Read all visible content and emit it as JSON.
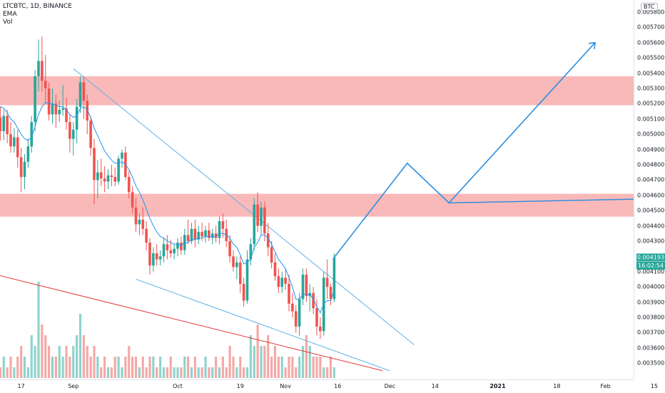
{
  "legend": {
    "symbol": "LTCBTC, 1D, BINANCE",
    "ema": "EMA",
    "vol": "Vol"
  },
  "currency_badge": "BTC",
  "current_price_label": "0.004193",
  "countdown_label": "16:02:54",
  "colors": {
    "up": "#26a69a",
    "down": "#ef5350",
    "ema": "#2196f3",
    "zone": "#f7a1a1",
    "channel": "#5eb1e8",
    "projection": "#2a8fe0",
    "red_trend": "#e53935"
  },
  "chart_data": {
    "type": "candlestick",
    "title": "",
    "ylim": [
      0.00345,
      0.0058
    ],
    "price_ticks": [
      "0.005800",
      "0.005700",
      "0.005600",
      "0.005500",
      "0.005400",
      "0.005300",
      "0.005200",
      "0.005100",
      "0.005000",
      "0.004900",
      "0.004800",
      "0.004700",
      "0.004600",
      "0.004500",
      "0.004400",
      "0.004300",
      "0.004100",
      "0.004000",
      "0.003900",
      "0.003800",
      "0.003700",
      "0.003600",
      "0.003500"
    ],
    "time_ticks": [
      "17",
      "Sep",
      "Oct",
      "19",
      "Nov",
      "16",
      "Dec",
      "14",
      "2021",
      "18",
      "Feb",
      "15"
    ],
    "current_price": 0.004193,
    "resistance_zones": [
      {
        "low": 0.00519,
        "high": 0.00538
      },
      {
        "low": 0.00446,
        "high": 0.00461
      }
    ],
    "candles": [
      {
        "t": "Aug-10",
        "o": 0.00521,
        "h": 0.00529,
        "l": 0.00504,
        "c": 0.00511
      },
      {
        "t": "Aug-11",
        "o": 0.00511,
        "h": 0.00518,
        "l": 0.00496,
        "c": 0.00502
      },
      {
        "t": "Aug-12",
        "o": 0.00502,
        "h": 0.00516,
        "l": 0.00496,
        "c": 0.00512
      },
      {
        "t": "Aug-13",
        "o": 0.00512,
        "h": 0.00516,
        "l": 0.00494,
        "c": 0.005
      },
      {
        "t": "Aug-14",
        "o": 0.005,
        "h": 0.00508,
        "l": 0.00488,
        "c": 0.00492
      },
      {
        "t": "Aug-15",
        "o": 0.00492,
        "h": 0.00504,
        "l": 0.00488,
        "c": 0.00498
      },
      {
        "t": "Aug-16",
        "o": 0.00498,
        "h": 0.00503,
        "l": 0.00478,
        "c": 0.00485
      },
      {
        "t": "Aug-17",
        "o": 0.00485,
        "h": 0.00491,
        "l": 0.00462,
        "c": 0.00472
      },
      {
        "t": "Aug-18",
        "o": 0.00472,
        "h": 0.00487,
        "l": 0.00464,
        "c": 0.00482
      },
      {
        "t": "Aug-19",
        "o": 0.00482,
        "h": 0.00497,
        "l": 0.00478,
        "c": 0.00492
      },
      {
        "t": "Aug-20",
        "o": 0.00492,
        "h": 0.00512,
        "l": 0.00488,
        "c": 0.00508
      },
      {
        "t": "Aug-21",
        "o": 0.00508,
        "h": 0.00542,
        "l": 0.00502,
        "c": 0.00538
      },
      {
        "t": "Aug-22",
        "o": 0.00538,
        "h": 0.00562,
        "l": 0.00528,
        "c": 0.00548
      },
      {
        "t": "Aug-23",
        "o": 0.00548,
        "h": 0.00564,
        "l": 0.00528,
        "c": 0.00535
      },
      {
        "t": "Aug-24",
        "o": 0.00535,
        "h": 0.00552,
        "l": 0.0052,
        "c": 0.0053
      },
      {
        "t": "Aug-25",
        "o": 0.0053,
        "h": 0.00534,
        "l": 0.00509,
        "c": 0.00513
      },
      {
        "t": "Aug-26",
        "o": 0.00513,
        "h": 0.0053,
        "l": 0.00507,
        "c": 0.0052
      },
      {
        "t": "Aug-27",
        "o": 0.0052,
        "h": 0.00526,
        "l": 0.00504,
        "c": 0.00513
      },
      {
        "t": "Aug-28",
        "o": 0.00513,
        "h": 0.00522,
        "l": 0.00508,
        "c": 0.00516
      },
      {
        "t": "Aug-29",
        "o": 0.00516,
        "h": 0.00532,
        "l": 0.00512,
        "c": 0.00517
      },
      {
        "t": "Aug-30",
        "o": 0.00517,
        "h": 0.00524,
        "l": 0.00503,
        "c": 0.00508
      },
      {
        "t": "Aug-31",
        "o": 0.00508,
        "h": 0.00513,
        "l": 0.00488,
        "c": 0.00497
      },
      {
        "t": "Sep-01",
        "o": 0.00497,
        "h": 0.00508,
        "l": 0.00486,
        "c": 0.00503
      },
      {
        "t": "Sep-02",
        "o": 0.00503,
        "h": 0.00523,
        "l": 0.00494,
        "c": 0.00518
      },
      {
        "t": "Sep-03",
        "o": 0.00518,
        "h": 0.00538,
        "l": 0.00514,
        "c": 0.00534
      },
      {
        "t": "Sep-04",
        "o": 0.00534,
        "h": 0.00538,
        "l": 0.0051,
        "c": 0.00522
      },
      {
        "t": "Sep-05",
        "o": 0.00522,
        "h": 0.00526,
        "l": 0.005,
        "c": 0.00509
      },
      {
        "t": "Sep-06",
        "o": 0.00509,
        "h": 0.00512,
        "l": 0.00486,
        "c": 0.00491
      },
      {
        "t": "Sep-07",
        "o": 0.00491,
        "h": 0.00497,
        "l": 0.00454,
        "c": 0.0047
      },
      {
        "t": "Sep-08",
        "o": 0.0047,
        "h": 0.00483,
        "l": 0.00458,
        "c": 0.00475
      },
      {
        "t": "Sep-09",
        "o": 0.00475,
        "h": 0.00484,
        "l": 0.00466,
        "c": 0.00471
      },
      {
        "t": "Sep-10",
        "o": 0.00471,
        "h": 0.00479,
        "l": 0.00462,
        "c": 0.00469
      },
      {
        "t": "Sep-11",
        "o": 0.00469,
        "h": 0.00477,
        "l": 0.00464,
        "c": 0.00473
      },
      {
        "t": "Sep-12",
        "o": 0.00473,
        "h": 0.0048,
        "l": 0.00466,
        "c": 0.00472
      },
      {
        "t": "Sep-13",
        "o": 0.00472,
        "h": 0.00478,
        "l": 0.00466,
        "c": 0.00469
      },
      {
        "t": "Sep-14",
        "o": 0.00469,
        "h": 0.00486,
        "l": 0.00467,
        "c": 0.00484
      },
      {
        "t": "Sep-15",
        "o": 0.00484,
        "h": 0.0049,
        "l": 0.00478,
        "c": 0.00488
      },
      {
        "t": "Sep-16",
        "o": 0.00488,
        "h": 0.00492,
        "l": 0.0047,
        "c": 0.00472
      },
      {
        "t": "Sep-17",
        "o": 0.00472,
        "h": 0.00476,
        "l": 0.00458,
        "c": 0.00462
      },
      {
        "t": "Sep-18",
        "o": 0.00462,
        "h": 0.00466,
        "l": 0.00448,
        "c": 0.00452
      },
      {
        "t": "Sep-19",
        "o": 0.00452,
        "h": 0.00458,
        "l": 0.00436,
        "c": 0.00441
      },
      {
        "t": "Sep-20",
        "o": 0.00441,
        "h": 0.00448,
        "l": 0.00434,
        "c": 0.00444
      },
      {
        "t": "Sep-21",
        "o": 0.00444,
        "h": 0.00452,
        "l": 0.00434,
        "c": 0.00438
      },
      {
        "t": "Sep-22",
        "o": 0.00438,
        "h": 0.00443,
        "l": 0.00424,
        "c": 0.00429
      },
      {
        "t": "Sep-23",
        "o": 0.00429,
        "h": 0.00432,
        "l": 0.00408,
        "c": 0.00414
      },
      {
        "t": "Sep-24",
        "o": 0.00414,
        "h": 0.00426,
        "l": 0.0041,
        "c": 0.00422
      },
      {
        "t": "Sep-25",
        "o": 0.00422,
        "h": 0.00428,
        "l": 0.00414,
        "c": 0.00418
      },
      {
        "t": "Sep-26",
        "o": 0.00418,
        "h": 0.00424,
        "l": 0.00414,
        "c": 0.0042
      },
      {
        "t": "Sep-27",
        "o": 0.0042,
        "h": 0.00432,
        "l": 0.00416,
        "c": 0.00428
      },
      {
        "t": "Sep-28",
        "o": 0.00428,
        "h": 0.00434,
        "l": 0.00418,
        "c": 0.00424
      },
      {
        "t": "Sep-29",
        "o": 0.00424,
        "h": 0.00431,
        "l": 0.00419,
        "c": 0.00422
      },
      {
        "t": "Sep-30",
        "o": 0.00422,
        "h": 0.00428,
        "l": 0.00418,
        "c": 0.00425
      },
      {
        "t": "Oct-01",
        "o": 0.00425,
        "h": 0.00432,
        "l": 0.0042,
        "c": 0.00429
      },
      {
        "t": "Oct-02",
        "o": 0.00429,
        "h": 0.00433,
        "l": 0.00421,
        "c": 0.00424
      },
      {
        "t": "Oct-03",
        "o": 0.00424,
        "h": 0.00438,
        "l": 0.00421,
        "c": 0.00434
      },
      {
        "t": "Oct-04",
        "o": 0.00434,
        "h": 0.00444,
        "l": 0.00428,
        "c": 0.0043
      },
      {
        "t": "Oct-05",
        "o": 0.0043,
        "h": 0.00442,
        "l": 0.00428,
        "c": 0.00438
      },
      {
        "t": "Oct-06",
        "o": 0.00438,
        "h": 0.00444,
        "l": 0.00426,
        "c": 0.00431
      },
      {
        "t": "Oct-07",
        "o": 0.00431,
        "h": 0.0044,
        "l": 0.00428,
        "c": 0.00436
      },
      {
        "t": "Oct-08",
        "o": 0.00436,
        "h": 0.00442,
        "l": 0.0043,
        "c": 0.00433
      },
      {
        "t": "Oct-09",
        "o": 0.00433,
        "h": 0.0044,
        "l": 0.00429,
        "c": 0.00437
      },
      {
        "t": "Oct-10",
        "o": 0.00437,
        "h": 0.00442,
        "l": 0.0043,
        "c": 0.00432
      },
      {
        "t": "Oct-11",
        "o": 0.00432,
        "h": 0.00438,
        "l": 0.00428,
        "c": 0.00435
      },
      {
        "t": "Oct-12",
        "o": 0.00435,
        "h": 0.0044,
        "l": 0.00429,
        "c": 0.00432
      },
      {
        "t": "Oct-13",
        "o": 0.00432,
        "h": 0.00446,
        "l": 0.00428,
        "c": 0.00443
      },
      {
        "t": "Oct-14",
        "o": 0.00443,
        "h": 0.00448,
        "l": 0.00432,
        "c": 0.00438
      },
      {
        "t": "Oct-15",
        "o": 0.00438,
        "h": 0.00444,
        "l": 0.00426,
        "c": 0.0043
      },
      {
        "t": "Oct-16",
        "o": 0.0043,
        "h": 0.00434,
        "l": 0.00416,
        "c": 0.0042
      },
      {
        "t": "Oct-17",
        "o": 0.0042,
        "h": 0.00424,
        "l": 0.0041,
        "c": 0.00413
      },
      {
        "t": "Oct-18",
        "o": 0.00413,
        "h": 0.0042,
        "l": 0.00405,
        "c": 0.00416
      },
      {
        "t": "Oct-19",
        "o": 0.00416,
        "h": 0.0042,
        "l": 0.00396,
        "c": 0.00402
      },
      {
        "t": "Oct-20",
        "o": 0.00402,
        "h": 0.00406,
        "l": 0.00387,
        "c": 0.00391
      },
      {
        "t": "Oct-21",
        "o": 0.00391,
        "h": 0.00424,
        "l": 0.00389,
        "c": 0.00418
      },
      {
        "t": "Oct-22",
        "o": 0.00418,
        "h": 0.00432,
        "l": 0.00414,
        "c": 0.00428
      },
      {
        "t": "Oct-23",
        "o": 0.00428,
        "h": 0.00458,
        "l": 0.00424,
        "c": 0.00454
      },
      {
        "t": "Oct-24",
        "o": 0.00454,
        "h": 0.00462,
        "l": 0.00436,
        "c": 0.0044
      },
      {
        "t": "Oct-25",
        "o": 0.0044,
        "h": 0.00456,
        "l": 0.00434,
        "c": 0.00452
      },
      {
        "t": "Oct-26",
        "o": 0.00452,
        "h": 0.00456,
        "l": 0.0043,
        "c": 0.00435
      },
      {
        "t": "Oct-27",
        "o": 0.00435,
        "h": 0.00442,
        "l": 0.0042,
        "c": 0.00426
      },
      {
        "t": "Oct-28",
        "o": 0.00426,
        "h": 0.0043,
        "l": 0.00412,
        "c": 0.00416
      },
      {
        "t": "Oct-29",
        "o": 0.00416,
        "h": 0.00422,
        "l": 0.00404,
        "c": 0.00407
      },
      {
        "t": "Oct-30",
        "o": 0.00407,
        "h": 0.00412,
        "l": 0.00396,
        "c": 0.004
      },
      {
        "t": "Oct-31",
        "o": 0.004,
        "h": 0.0041,
        "l": 0.00396,
        "c": 0.00406
      },
      {
        "t": "Nov-01",
        "o": 0.00406,
        "h": 0.00412,
        "l": 0.00398,
        "c": 0.00402
      },
      {
        "t": "Nov-02",
        "o": 0.00402,
        "h": 0.00408,
        "l": 0.00384,
        "c": 0.00389
      },
      {
        "t": "Nov-03",
        "o": 0.00389,
        "h": 0.00396,
        "l": 0.0038,
        "c": 0.00384
      },
      {
        "t": "Nov-04",
        "o": 0.00384,
        "h": 0.00388,
        "l": 0.0037,
        "c": 0.00374
      },
      {
        "t": "Nov-05",
        "o": 0.00374,
        "h": 0.00396,
        "l": 0.00368,
        "c": 0.00392
      },
      {
        "t": "Nov-06",
        "o": 0.00392,
        "h": 0.00412,
        "l": 0.00388,
        "c": 0.00408
      },
      {
        "t": "Nov-07",
        "o": 0.00408,
        "h": 0.00412,
        "l": 0.0039,
        "c": 0.00394
      },
      {
        "t": "Nov-08",
        "o": 0.00394,
        "h": 0.00402,
        "l": 0.00384,
        "c": 0.00396
      },
      {
        "t": "Nov-09",
        "o": 0.00396,
        "h": 0.004,
        "l": 0.00382,
        "c": 0.00386
      },
      {
        "t": "Nov-10",
        "o": 0.00386,
        "h": 0.00392,
        "l": 0.00368,
        "c": 0.00374
      },
      {
        "t": "Nov-11",
        "o": 0.00374,
        "h": 0.0038,
        "l": 0.00366,
        "c": 0.00371
      },
      {
        "t": "Nov-12",
        "o": 0.00371,
        "h": 0.0041,
        "l": 0.00368,
        "c": 0.00406
      },
      {
        "t": "Nov-13",
        "o": 0.00406,
        "h": 0.00418,
        "l": 0.00392,
        "c": 0.004
      },
      {
        "t": "Nov-14",
        "o": 0.004,
        "h": 0.00402,
        "l": 0.00388,
        "c": 0.00392
      },
      {
        "t": "Nov-15",
        "o": 0.00392,
        "h": 0.00422,
        "l": 0.0039,
        "c": 0.004193
      }
    ],
    "volumes": [
      2,
      1,
      2,
      1,
      2,
      1,
      2,
      3,
      2,
      1,
      4,
      3,
      9,
      5,
      4,
      3,
      2,
      2,
      3,
      2,
      3,
      2,
      3,
      4,
      6,
      4,
      3,
      2,
      3,
      2,
      1,
      2,
      1,
      1,
      2,
      2,
      1,
      2,
      3,
      2,
      2,
      1,
      2,
      1,
      2,
      2,
      1,
      2,
      1,
      1,
      2,
      1,
      1,
      1,
      2,
      2,
      1,
      2,
      1,
      1,
      2,
      1,
      1,
      2,
      1,
      2,
      1,
      3,
      2,
      1,
      2,
      1,
      1,
      4,
      3,
      5,
      3,
      3,
      4,
      2,
      3,
      2,
      2,
      1,
      2,
      2,
      1,
      2,
      3,
      4,
      3,
      2,
      2,
      2,
      1,
      1,
      2,
      1
    ],
    "ema": [
      0.00521,
      0.00518,
      0.00517,
      0.00514,
      0.0051,
      0.00508,
      0.00504,
      0.005,
      0.00497,
      0.00496,
      0.00498,
      0.00505,
      0.00513,
      0.00518,
      0.00521,
      0.0052,
      0.0052,
      0.00519,
      0.00518,
      0.00518,
      0.00516,
      0.00513,
      0.00511,
      0.00512,
      0.00517,
      0.00518,
      0.00516,
      0.00511,
      0.00504,
      0.00499,
      0.00494,
      0.00489,
      0.00486,
      0.00483,
      0.00481,
      0.00481,
      0.00482,
      0.0048,
      0.00477,
      0.00472,
      0.00466,
      0.00462,
      0.00457,
      0.00451,
      0.00445,
      0.0044,
      0.00436,
      0.00433,
      0.00432,
      0.0043,
      0.00429,
      0.00428,
      0.00428,
      0.00427,
      0.00429,
      0.00429,
      0.00431,
      0.00431,
      0.00432,
      0.00432,
      0.00433,
      0.00433,
      0.00433,
      0.00433,
      0.00435,
      0.00435,
      0.00434,
      0.00432,
      0.00428,
      0.00426,
      0.00421,
      0.00415,
      0.00416,
      0.00418,
      0.00426,
      0.00429,
      0.00434,
      0.00434,
      0.00432,
      0.00428,
      0.00423,
      0.00418,
      0.00415,
      0.00412,
      0.00406,
      0.004,
      0.00392,
      0.00392,
      0.00395,
      0.00395,
      0.00395,
      0.00392,
      0.00387,
      0.00383,
      0.00389,
      0.00391,
      0.00391,
      0.00398
    ],
    "annotations": {
      "channel_upper": {
        "from": {
          "t": "Sep-01",
          "v": 0.00543
        },
        "to": {
          "t": "Dec-08",
          "v": 0.00362
        }
      },
      "channel_lower": {
        "from": {
          "t": "Sep-19",
          "v": 0.00405
        },
        "to": {
          "t": "Dec-01",
          "v": 0.00345
        }
      },
      "red_trend": {
        "from": {
          "t": "Aug-08",
          "v": 0.00409
        },
        "to": {
          "t": "Nov-29",
          "v": 0.00345
        }
      },
      "horizontal_support": {
        "from": {
          "t": "Dec-18",
          "v": 0.00455
        },
        "to": {
          "t": "Feb-21",
          "v": 0.00458
        }
      },
      "projection_path": [
        {
          "t": "Nov-15",
          "v": 0.004193
        },
        {
          "t": "Dec-06",
          "v": 0.00481
        },
        {
          "t": "Dec-18",
          "v": 0.00455
        },
        {
          "t": "Jan-29",
          "v": 0.0056
        }
      ]
    }
  }
}
